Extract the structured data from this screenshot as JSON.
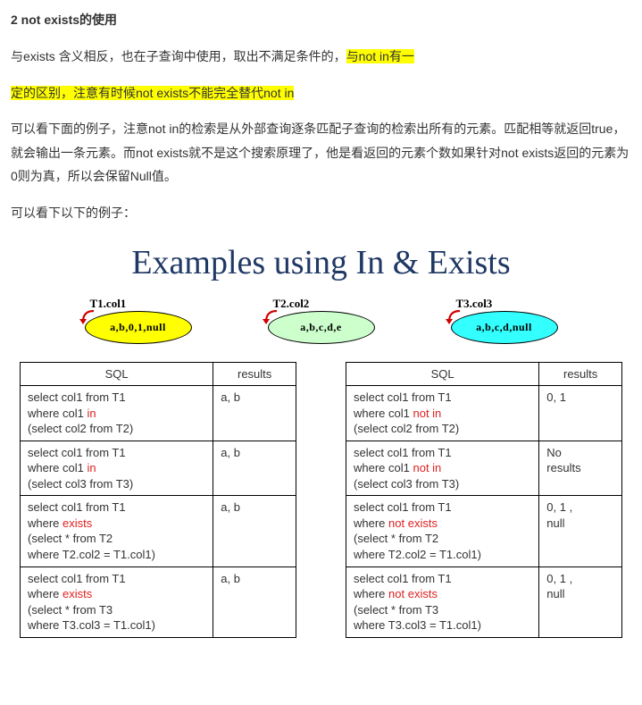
{
  "heading": "2 not exists的使用",
  "para1_pre": "与exists 含义相反，也在子查询中使用，取出不满足条件的，",
  "para1_hl": "与not in有一",
  "para2_hl": "定的区别，注意有时候not exists不能完全替代not in",
  "para3": "可以看下面的例子，注意not in的检索是从外部查询逐条匹配子查询的检索出所有的元素。匹配相等就返回true，就会输出一条元素。而not exists就不是这个搜索原理了，他是看返回的元素个数如果针对not exists返回的元素为0则为真，所以会保留Null值。",
  "para4": "可以看下以下的例子：",
  "slide": {
    "title": "Examples using In & Exists",
    "ovals": [
      {
        "label": "T1.col1",
        "text": "a,b,0,1,null",
        "fill": "#ffff00"
      },
      {
        "label": "T2.col2",
        "text": "a,b,c,d,e",
        "fill": "#ccffcc"
      },
      {
        "label": "T3.col3",
        "text": "a,b,c,d,null",
        "fill": "#33ffff"
      }
    ],
    "headers": {
      "sql": "SQL",
      "results": "results"
    },
    "left_rows": [
      {
        "l1": "select col1 from  T1",
        "l2a": "where col1 ",
        "kw": "in",
        "l2b": "",
        "l3": "(select col2 from T2)",
        "l4": "",
        "res": "a, b"
      },
      {
        "l1": "select col1 from  T1",
        "l2a": "where col1 ",
        "kw": "in",
        "l2b": "",
        "l3": "(select col3 from T3)",
        "l4": "",
        "res": "a, b"
      },
      {
        "l1": "select col1 from  T1",
        "l2a": "where ",
        "kw": "exists",
        "l2b": "",
        "l3": "(select * from T2",
        "l4": "where T2.col2 = T1.col1)",
        "res": "a, b"
      },
      {
        "l1": "select col1 from  T1",
        "l2a": "where ",
        "kw": "exists",
        "l2b": "",
        "l3": "(select * from T3",
        "l4": "where T3.col3 = T1.col1)",
        "res": "a, b"
      }
    ],
    "right_rows": [
      {
        "l1": "select col1 from  T1",
        "l2a": "where col1  ",
        "kw": "not in",
        "l2b": "",
        "l3": "(select col2 from T2)",
        "l4": "",
        "res": "0, 1"
      },
      {
        "l1": "select col1 from  T1",
        "l2a": "where col1  ",
        "kw": "not in",
        "l2b": "",
        "l3": "(select col3 from T3)",
        "l4": "",
        "res": "No results"
      },
      {
        "l1": "select col1 from  T1",
        "l2a": "where ",
        "kw": "not exists",
        "l2b": "",
        "l3": "(select * from T2",
        "l4": "where T2.col2 = T1.col1)",
        "res": "0, 1 , null"
      },
      {
        "l1": "select col1 from  T1",
        "l2a": "where ",
        "kw": "not exists",
        "l2b": "",
        "l3": "(select * from T3",
        "l4": "where T3.col3 = T1.col1)",
        "res": "0, 1 , null"
      }
    ]
  }
}
